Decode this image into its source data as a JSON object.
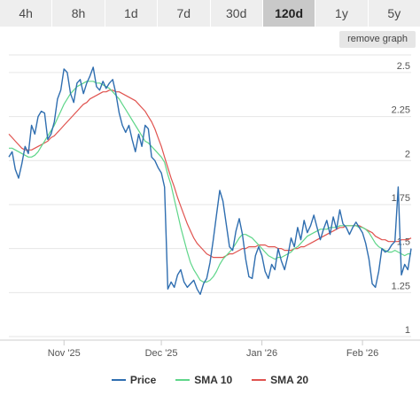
{
  "tabs": [
    {
      "label": "4h",
      "active": false
    },
    {
      "label": "8h",
      "active": false
    },
    {
      "label": "1d",
      "active": false
    },
    {
      "label": "7d",
      "active": false
    },
    {
      "label": "30d",
      "active": false
    },
    {
      "label": "120d",
      "active": true
    },
    {
      "label": "1y",
      "active": false
    },
    {
      "label": "5y",
      "active": false
    }
  ],
  "remove_graph_label": "remove graph",
  "chart_data": {
    "type": "line",
    "title": "",
    "xlabel": "",
    "ylabel": "",
    "ylim": [
      1,
      2.6
    ],
    "xlim": [
      0,
      124
    ],
    "y_ticks": [
      1,
      1.25,
      1.5,
      1.75,
      2,
      2.25,
      2.5
    ],
    "y_tick_labels": [
      "1",
      "1.25",
      "1.5",
      "1.75",
      "2",
      "2.25",
      "2.5"
    ],
    "x_ticks": [
      {
        "label": "Nov '25",
        "x": 17
      },
      {
        "label": "Dec '25",
        "x": 47
      },
      {
        "label": "Jan '26",
        "x": 78
      },
      {
        "label": "Feb '26",
        "x": 109
      }
    ],
    "grid": true,
    "legend_position": "bottom",
    "series": [
      {
        "name": "Price",
        "color": "#2f6eb0",
        "x": [
          0,
          1,
          2,
          3,
          4,
          5,
          6,
          7,
          8,
          9,
          10,
          11,
          12,
          13,
          14,
          15,
          16,
          17,
          18,
          19,
          20,
          21,
          22,
          23,
          24,
          25,
          26,
          27,
          28,
          29,
          30,
          31,
          32,
          33,
          34,
          35,
          36,
          37,
          38,
          39,
          40,
          41,
          42,
          43,
          44,
          45,
          46,
          47,
          48,
          49,
          50,
          51,
          52,
          53,
          54,
          55,
          56,
          57,
          58,
          59,
          60,
          61,
          62,
          63,
          64,
          65,
          66,
          67,
          68,
          69,
          70,
          71,
          72,
          73,
          74,
          75,
          76,
          77,
          78,
          79,
          80,
          81,
          82,
          83,
          84,
          85,
          86,
          87,
          88,
          89,
          90,
          91,
          92,
          93,
          94,
          95,
          96,
          97,
          98,
          99,
          100,
          101,
          102,
          103,
          104,
          105,
          106,
          107,
          108,
          109,
          110,
          111,
          112,
          113,
          114,
          115,
          116,
          117,
          118,
          119,
          120,
          121,
          122,
          123,
          124
        ],
        "values": [
          2.02,
          2.05,
          1.95,
          1.9,
          1.98,
          2.08,
          2.04,
          2.2,
          2.15,
          2.25,
          2.28,
          2.27,
          2.12,
          2.15,
          2.22,
          2.35,
          2.4,
          2.52,
          2.5,
          2.38,
          2.33,
          2.44,
          2.46,
          2.38,
          2.44,
          2.48,
          2.53,
          2.42,
          2.4,
          2.45,
          2.41,
          2.44,
          2.46,
          2.38,
          2.27,
          2.2,
          2.16,
          2.2,
          2.12,
          2.05,
          2.15,
          2.08,
          2.2,
          2.18,
          2.02,
          2.0,
          1.96,
          1.93,
          1.85,
          1.27,
          1.31,
          1.28,
          1.35,
          1.38,
          1.31,
          1.28,
          1.3,
          1.32,
          1.27,
          1.24,
          1.3,
          1.33,
          1.42,
          1.55,
          1.69,
          1.83,
          1.77,
          1.64,
          1.51,
          1.49,
          1.6,
          1.67,
          1.58,
          1.44,
          1.34,
          1.33,
          1.46,
          1.51,
          1.46,
          1.37,
          1.33,
          1.41,
          1.38,
          1.5,
          1.43,
          1.38,
          1.46,
          1.56,
          1.51,
          1.62,
          1.55,
          1.66,
          1.59,
          1.63,
          1.69,
          1.62,
          1.55,
          1.61,
          1.66,
          1.58,
          1.68,
          1.61,
          1.72,
          1.64,
          1.62,
          1.58,
          1.62,
          1.65,
          1.62,
          1.59,
          1.53,
          1.44,
          1.3,
          1.28,
          1.37,
          1.5,
          1.48,
          1.49,
          1.52,
          1.54,
          1.85,
          1.35,
          1.41,
          1.38,
          1.5
        ]
      },
      {
        "name": "SMA 10",
        "color": "#5fd68a",
        "x": [
          0,
          1,
          2,
          3,
          4,
          5,
          6,
          7,
          8,
          9,
          10,
          11,
          12,
          13,
          14,
          15,
          16,
          17,
          18,
          19,
          20,
          21,
          22,
          23,
          24,
          25,
          26,
          27,
          28,
          29,
          30,
          31,
          32,
          33,
          34,
          35,
          36,
          37,
          38,
          39,
          40,
          41,
          42,
          43,
          44,
          45,
          46,
          47,
          48,
          49,
          50,
          51,
          52,
          53,
          54,
          55,
          56,
          57,
          58,
          59,
          60,
          61,
          62,
          63,
          64,
          65,
          66,
          67,
          68,
          69,
          70,
          71,
          72,
          73,
          74,
          75,
          76,
          77,
          78,
          79,
          80,
          81,
          82,
          83,
          84,
          85,
          86,
          87,
          88,
          89,
          90,
          91,
          92,
          93,
          94,
          95,
          96,
          97,
          98,
          99,
          100,
          101,
          102,
          103,
          104,
          105,
          106,
          107,
          108,
          109,
          110,
          111,
          112,
          113,
          114,
          115,
          116,
          117,
          118,
          119,
          120,
          121,
          122,
          123,
          124
        ],
        "values": [
          2.07,
          2.07,
          2.06,
          2.05,
          2.04,
          2.03,
          2.02,
          2.02,
          2.03,
          2.05,
          2.08,
          2.11,
          2.14,
          2.17,
          2.2,
          2.24,
          2.28,
          2.32,
          2.35,
          2.38,
          2.4,
          2.42,
          2.43,
          2.44,
          2.45,
          2.45,
          2.45,
          2.44,
          2.44,
          2.43,
          2.42,
          2.41,
          2.39,
          2.37,
          2.35,
          2.32,
          2.29,
          2.26,
          2.23,
          2.2,
          2.17,
          2.14,
          2.11,
          2.1,
          2.08,
          2.06,
          2.04,
          2.02,
          1.99,
          1.92,
          1.86,
          1.78,
          1.7,
          1.62,
          1.55,
          1.48,
          1.42,
          1.38,
          1.35,
          1.32,
          1.31,
          1.31,
          1.32,
          1.34,
          1.37,
          1.41,
          1.44,
          1.46,
          1.48,
          1.5,
          1.53,
          1.56,
          1.58,
          1.58,
          1.57,
          1.56,
          1.54,
          1.52,
          1.5,
          1.48,
          1.46,
          1.45,
          1.44,
          1.45,
          1.45,
          1.46,
          1.47,
          1.48,
          1.5,
          1.51,
          1.53,
          1.55,
          1.57,
          1.58,
          1.59,
          1.6,
          1.61,
          1.61,
          1.61,
          1.62,
          1.62,
          1.62,
          1.63,
          1.63,
          1.63,
          1.63,
          1.63,
          1.63,
          1.62,
          1.62,
          1.61,
          1.59,
          1.56,
          1.53,
          1.51,
          1.5,
          1.49,
          1.48,
          1.48,
          1.49,
          1.48,
          1.47,
          1.46,
          1.47,
          1.47
        ]
      },
      {
        "name": "SMA 20",
        "color": "#e0534f",
        "x": [
          0,
          1,
          2,
          3,
          4,
          5,
          6,
          7,
          8,
          9,
          10,
          11,
          12,
          13,
          14,
          15,
          16,
          17,
          18,
          19,
          20,
          21,
          22,
          23,
          24,
          25,
          26,
          27,
          28,
          29,
          30,
          31,
          32,
          33,
          34,
          35,
          36,
          37,
          38,
          39,
          40,
          41,
          42,
          43,
          44,
          45,
          46,
          47,
          48,
          49,
          50,
          51,
          52,
          53,
          54,
          55,
          56,
          57,
          58,
          59,
          60,
          61,
          62,
          63,
          64,
          65,
          66,
          67,
          68,
          69,
          70,
          71,
          72,
          73,
          74,
          75,
          76,
          77,
          78,
          79,
          80,
          81,
          82,
          83,
          84,
          85,
          86,
          87,
          88,
          89,
          90,
          91,
          92,
          93,
          94,
          95,
          96,
          97,
          98,
          99,
          100,
          101,
          102,
          103,
          104,
          105,
          106,
          107,
          108,
          109,
          110,
          111,
          112,
          113,
          114,
          115,
          116,
          117,
          118,
          119,
          120,
          121,
          122,
          123,
          124
        ],
        "values": [
          2.15,
          2.13,
          2.11,
          2.09,
          2.07,
          2.06,
          2.06,
          2.06,
          2.07,
          2.08,
          2.09,
          2.1,
          2.11,
          2.13,
          2.14,
          2.16,
          2.18,
          2.2,
          2.22,
          2.24,
          2.26,
          2.28,
          2.3,
          2.32,
          2.33,
          2.35,
          2.36,
          2.37,
          2.38,
          2.39,
          2.39,
          2.4,
          2.4,
          2.39,
          2.39,
          2.38,
          2.37,
          2.36,
          2.35,
          2.34,
          2.32,
          2.3,
          2.28,
          2.25,
          2.22,
          2.18,
          2.13,
          2.08,
          2.02,
          1.96,
          1.9,
          1.85,
          1.79,
          1.74,
          1.69,
          1.64,
          1.6,
          1.56,
          1.53,
          1.51,
          1.49,
          1.47,
          1.46,
          1.45,
          1.45,
          1.45,
          1.45,
          1.46,
          1.47,
          1.47,
          1.48,
          1.49,
          1.5,
          1.5,
          1.51,
          1.51,
          1.51,
          1.52,
          1.52,
          1.52,
          1.51,
          1.51,
          1.51,
          1.5,
          1.5,
          1.49,
          1.49,
          1.49,
          1.5,
          1.5,
          1.51,
          1.51,
          1.52,
          1.53,
          1.54,
          1.55,
          1.56,
          1.57,
          1.58,
          1.59,
          1.6,
          1.61,
          1.62,
          1.62,
          1.63,
          1.63,
          1.63,
          1.63,
          1.63,
          1.62,
          1.61,
          1.6,
          1.59,
          1.57,
          1.56,
          1.55,
          1.55,
          1.54,
          1.54,
          1.54,
          1.54,
          1.55,
          1.55,
          1.55,
          1.56
        ]
      }
    ]
  }
}
